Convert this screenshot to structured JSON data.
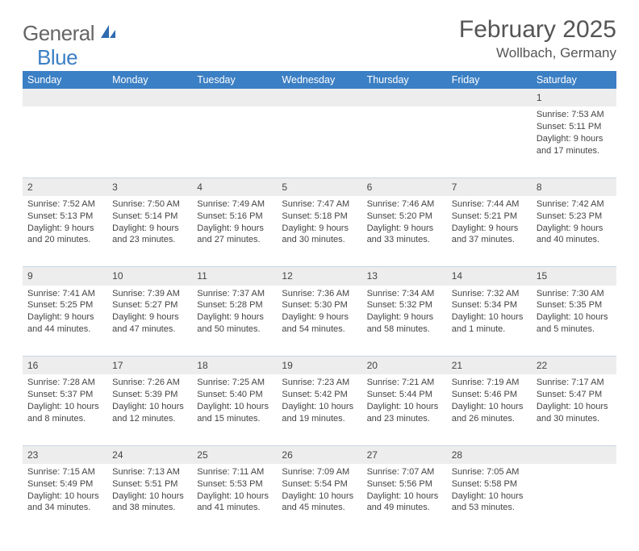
{
  "logo": {
    "part1": "General",
    "part2": "Blue"
  },
  "title": "February 2025",
  "location": "Wollbach, Germany",
  "colors": {
    "header_bg": "#3b7fc4",
    "header_fg": "#ffffff",
    "daynum_bg": "#ededed",
    "divider": "#c9d6e4",
    "text": "#444444",
    "title_color": "#555555"
  },
  "weekdays": [
    "Sunday",
    "Monday",
    "Tuesday",
    "Wednesday",
    "Thursday",
    "Friday",
    "Saturday"
  ],
  "weeks": [
    [
      {
        "n": "",
        "sr": "",
        "ss": "",
        "d1": "",
        "d2": ""
      },
      {
        "n": "",
        "sr": "",
        "ss": "",
        "d1": "",
        "d2": ""
      },
      {
        "n": "",
        "sr": "",
        "ss": "",
        "d1": "",
        "d2": ""
      },
      {
        "n": "",
        "sr": "",
        "ss": "",
        "d1": "",
        "d2": ""
      },
      {
        "n": "",
        "sr": "",
        "ss": "",
        "d1": "",
        "d2": ""
      },
      {
        "n": "",
        "sr": "",
        "ss": "",
        "d1": "",
        "d2": ""
      },
      {
        "n": "1",
        "sr": "Sunrise: 7:53 AM",
        "ss": "Sunset: 5:11 PM",
        "d1": "Daylight: 9 hours",
        "d2": "and 17 minutes."
      }
    ],
    [
      {
        "n": "2",
        "sr": "Sunrise: 7:52 AM",
        "ss": "Sunset: 5:13 PM",
        "d1": "Daylight: 9 hours",
        "d2": "and 20 minutes."
      },
      {
        "n": "3",
        "sr": "Sunrise: 7:50 AM",
        "ss": "Sunset: 5:14 PM",
        "d1": "Daylight: 9 hours",
        "d2": "and 23 minutes."
      },
      {
        "n": "4",
        "sr": "Sunrise: 7:49 AM",
        "ss": "Sunset: 5:16 PM",
        "d1": "Daylight: 9 hours",
        "d2": "and 27 minutes."
      },
      {
        "n": "5",
        "sr": "Sunrise: 7:47 AM",
        "ss": "Sunset: 5:18 PM",
        "d1": "Daylight: 9 hours",
        "d2": "and 30 minutes."
      },
      {
        "n": "6",
        "sr": "Sunrise: 7:46 AM",
        "ss": "Sunset: 5:20 PM",
        "d1": "Daylight: 9 hours",
        "d2": "and 33 minutes."
      },
      {
        "n": "7",
        "sr": "Sunrise: 7:44 AM",
        "ss": "Sunset: 5:21 PM",
        "d1": "Daylight: 9 hours",
        "d2": "and 37 minutes."
      },
      {
        "n": "8",
        "sr": "Sunrise: 7:42 AM",
        "ss": "Sunset: 5:23 PM",
        "d1": "Daylight: 9 hours",
        "d2": "and 40 minutes."
      }
    ],
    [
      {
        "n": "9",
        "sr": "Sunrise: 7:41 AM",
        "ss": "Sunset: 5:25 PM",
        "d1": "Daylight: 9 hours",
        "d2": "and 44 minutes."
      },
      {
        "n": "10",
        "sr": "Sunrise: 7:39 AM",
        "ss": "Sunset: 5:27 PM",
        "d1": "Daylight: 9 hours",
        "d2": "and 47 minutes."
      },
      {
        "n": "11",
        "sr": "Sunrise: 7:37 AM",
        "ss": "Sunset: 5:28 PM",
        "d1": "Daylight: 9 hours",
        "d2": "and 50 minutes."
      },
      {
        "n": "12",
        "sr": "Sunrise: 7:36 AM",
        "ss": "Sunset: 5:30 PM",
        "d1": "Daylight: 9 hours",
        "d2": "and 54 minutes."
      },
      {
        "n": "13",
        "sr": "Sunrise: 7:34 AM",
        "ss": "Sunset: 5:32 PM",
        "d1": "Daylight: 9 hours",
        "d2": "and 58 minutes."
      },
      {
        "n": "14",
        "sr": "Sunrise: 7:32 AM",
        "ss": "Sunset: 5:34 PM",
        "d1": "Daylight: 10 hours",
        "d2": "and 1 minute."
      },
      {
        "n": "15",
        "sr": "Sunrise: 7:30 AM",
        "ss": "Sunset: 5:35 PM",
        "d1": "Daylight: 10 hours",
        "d2": "and 5 minutes."
      }
    ],
    [
      {
        "n": "16",
        "sr": "Sunrise: 7:28 AM",
        "ss": "Sunset: 5:37 PM",
        "d1": "Daylight: 10 hours",
        "d2": "and 8 minutes."
      },
      {
        "n": "17",
        "sr": "Sunrise: 7:26 AM",
        "ss": "Sunset: 5:39 PM",
        "d1": "Daylight: 10 hours",
        "d2": "and 12 minutes."
      },
      {
        "n": "18",
        "sr": "Sunrise: 7:25 AM",
        "ss": "Sunset: 5:40 PM",
        "d1": "Daylight: 10 hours",
        "d2": "and 15 minutes."
      },
      {
        "n": "19",
        "sr": "Sunrise: 7:23 AM",
        "ss": "Sunset: 5:42 PM",
        "d1": "Daylight: 10 hours",
        "d2": "and 19 minutes."
      },
      {
        "n": "20",
        "sr": "Sunrise: 7:21 AM",
        "ss": "Sunset: 5:44 PM",
        "d1": "Daylight: 10 hours",
        "d2": "and 23 minutes."
      },
      {
        "n": "21",
        "sr": "Sunrise: 7:19 AM",
        "ss": "Sunset: 5:46 PM",
        "d1": "Daylight: 10 hours",
        "d2": "and 26 minutes."
      },
      {
        "n": "22",
        "sr": "Sunrise: 7:17 AM",
        "ss": "Sunset: 5:47 PM",
        "d1": "Daylight: 10 hours",
        "d2": "and 30 minutes."
      }
    ],
    [
      {
        "n": "23",
        "sr": "Sunrise: 7:15 AM",
        "ss": "Sunset: 5:49 PM",
        "d1": "Daylight: 10 hours",
        "d2": "and 34 minutes."
      },
      {
        "n": "24",
        "sr": "Sunrise: 7:13 AM",
        "ss": "Sunset: 5:51 PM",
        "d1": "Daylight: 10 hours",
        "d2": "and 38 minutes."
      },
      {
        "n": "25",
        "sr": "Sunrise: 7:11 AM",
        "ss": "Sunset: 5:53 PM",
        "d1": "Daylight: 10 hours",
        "d2": "and 41 minutes."
      },
      {
        "n": "26",
        "sr": "Sunrise: 7:09 AM",
        "ss": "Sunset: 5:54 PM",
        "d1": "Daylight: 10 hours",
        "d2": "and 45 minutes."
      },
      {
        "n": "27",
        "sr": "Sunrise: 7:07 AM",
        "ss": "Sunset: 5:56 PM",
        "d1": "Daylight: 10 hours",
        "d2": "and 49 minutes."
      },
      {
        "n": "28",
        "sr": "Sunrise: 7:05 AM",
        "ss": "Sunset: 5:58 PM",
        "d1": "Daylight: 10 hours",
        "d2": "and 53 minutes."
      },
      {
        "n": "",
        "sr": "",
        "ss": "",
        "d1": "",
        "d2": ""
      }
    ]
  ]
}
